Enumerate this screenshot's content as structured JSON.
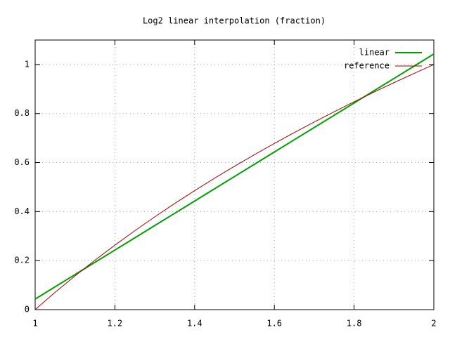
{
  "chart_data": {
    "type": "line",
    "title": "Log2 linear interpolation (fraction)",
    "x": [
      1,
      1.05,
      1.1,
      1.15,
      1.2,
      1.25,
      1.3,
      1.35,
      1.4,
      1.45,
      1.5,
      1.55,
      1.6,
      1.65,
      1.7,
      1.75,
      1.8,
      1.85,
      1.9,
      1.95,
      2
    ],
    "series": [
      {
        "name": "linear",
        "color": "#00a000",
        "width": 2,
        "values": [
          0.043,
          0.093,
          0.143,
          0.193,
          0.243,
          0.293,
          0.343,
          0.393,
          0.443,
          0.493,
          0.543,
          0.593,
          0.643,
          0.693,
          0.743,
          0.793,
          0.843,
          0.893,
          0.943,
          0.993,
          1.043
        ]
      },
      {
        "name": "reference",
        "color": "#a00000",
        "width": 1,
        "values": [
          0,
          0.0704,
          0.1375,
          0.2016,
          0.263,
          0.3219,
          0.3785,
          0.433,
          0.4854,
          0.5361,
          0.585,
          0.6323,
          0.6781,
          0.7225,
          0.7655,
          0.8074,
          0.848,
          0.8875,
          0.926,
          0.9635,
          1
        ]
      }
    ],
    "xlim": [
      1,
      2
    ],
    "xticks": [
      1,
      1.2,
      1.4,
      1.6,
      1.8,
      2
    ],
    "ylim": [
      0,
      1.1
    ],
    "yticks": [
      0,
      0.2,
      0.4,
      0.6,
      0.8,
      1
    ],
    "grid": true,
    "legend": "top-right"
  }
}
